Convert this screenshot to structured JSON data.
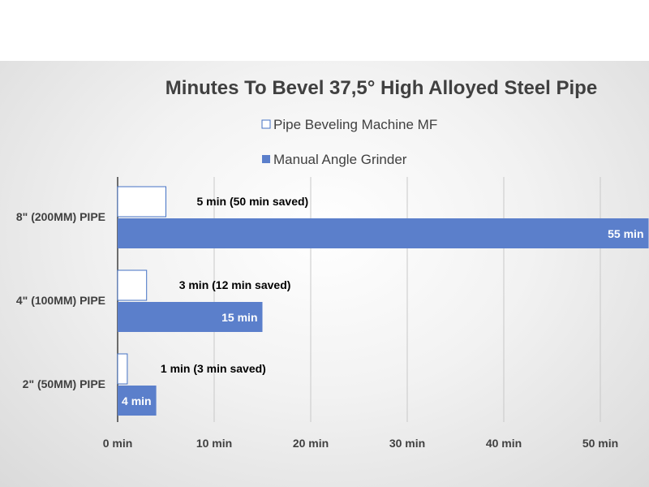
{
  "chart_data": {
    "type": "bar",
    "orientation": "horizontal",
    "title": "Minutes To Bevel 37,5° High Alloyed Steel Pipe",
    "categories": [
      "8\" (200MM) PIPE",
      "4\" (100MM) PIPE",
      "2\" (50MM) PIPE"
    ],
    "series": [
      {
        "name": "Pipe Beveling Machine MF",
        "values": [
          5,
          3,
          1
        ],
        "data_labels": [
          "5 min (50 min saved)",
          "3 min (12 min saved)",
          "1 min (3 min saved)"
        ],
        "color": "#ffffff",
        "border_color": "#4472c4"
      },
      {
        "name": "Manual Angle Grinder",
        "values": [
          55,
          15,
          4
        ],
        "data_labels": [
          "55 min",
          "15 min",
          "4 min"
        ],
        "color": "#5b7fcb"
      }
    ],
    "xlim": [
      0,
      55
    ],
    "xticks": [
      0,
      10,
      20,
      30,
      40,
      50
    ],
    "xtick_labels": [
      "0 min",
      "10 min",
      "20 min",
      "30 min",
      "40 min",
      "50 min"
    ],
    "xlabel": "",
    "ylabel": "",
    "grid": true,
    "legend_position": "top"
  }
}
